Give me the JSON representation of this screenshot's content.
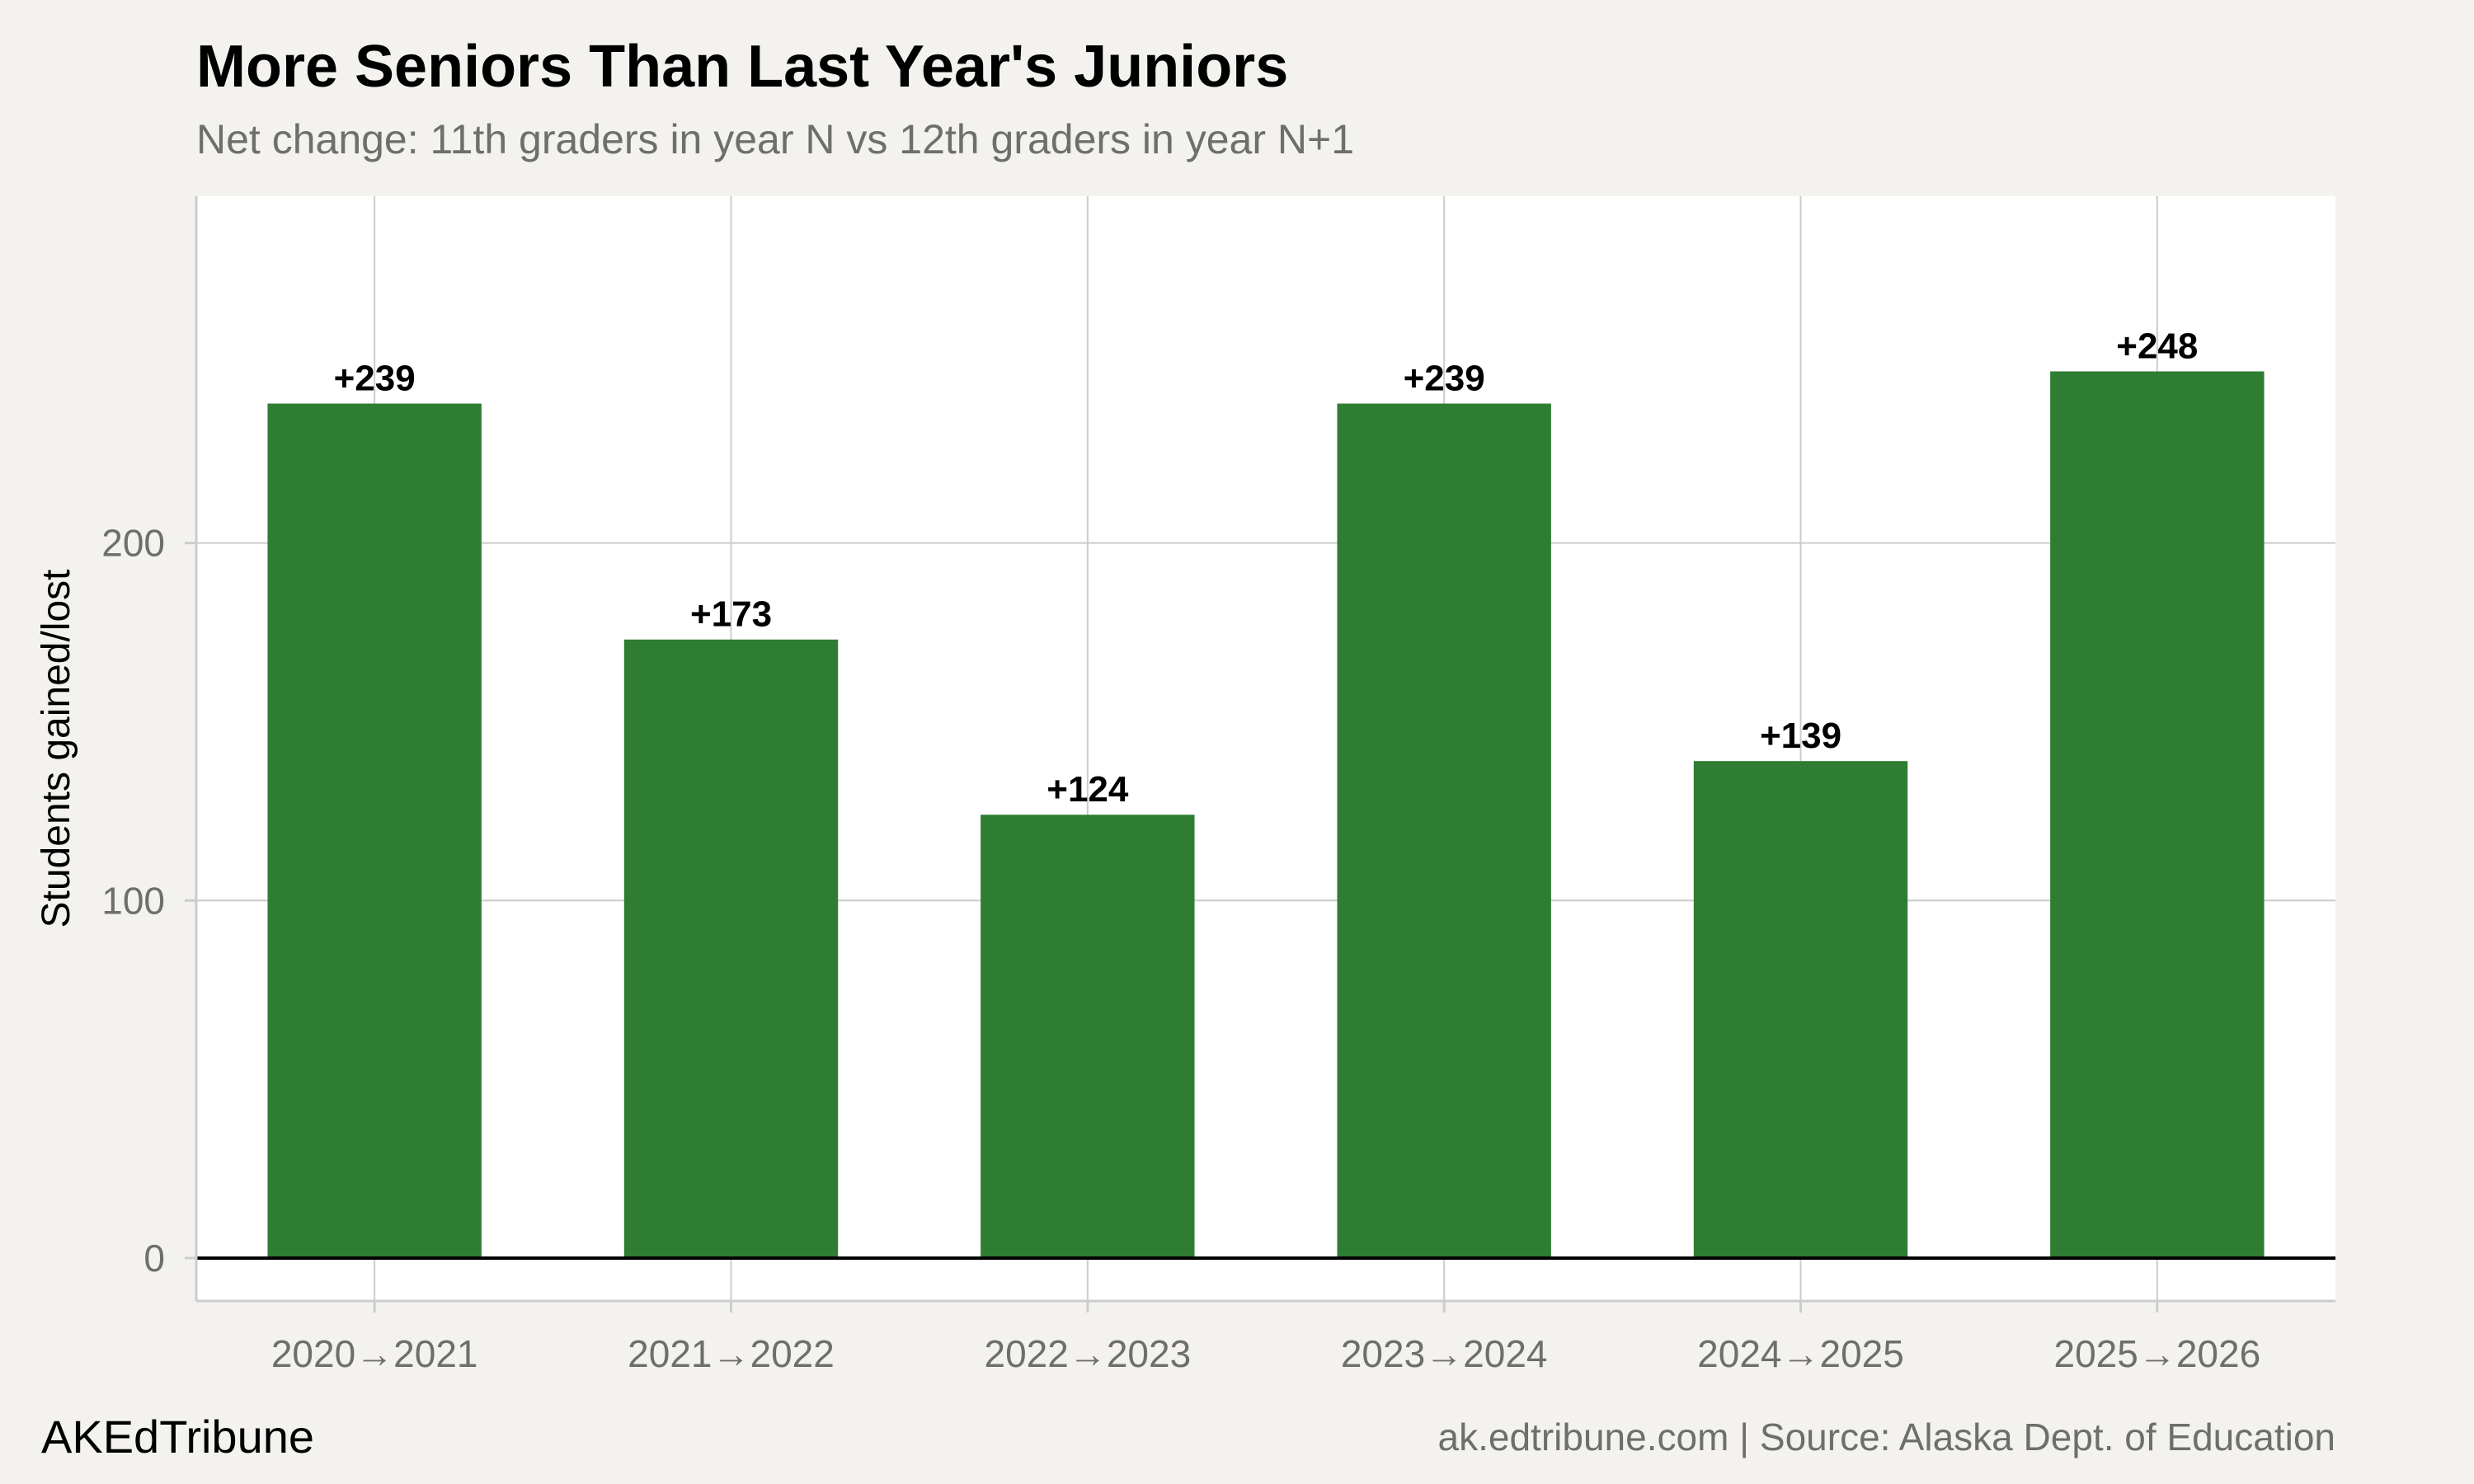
{
  "header": {
    "title": "More Seniors Than Last Year's Juniors",
    "subtitle": "Net change: 11th graders in year N vs 12th graders in year N+1"
  },
  "footer": {
    "brand": "AKEdTribune",
    "source": "ak.edtribune.com | Source: Alaska Dept. of Education"
  },
  "colors": {
    "bar": "#2e7d32",
    "page_background": "#f4f2ee",
    "plot_background": "#ffffff",
    "grid": "#cccccc",
    "zero_line": "#000000"
  },
  "chart_data": {
    "type": "bar",
    "title": "More Seniors Than Last Year's Juniors",
    "subtitle": "Net change: 11th graders in year N vs 12th graders in year N+1",
    "xlabel": "",
    "ylabel": "Students gained/lost",
    "categories": [
      "2020→2021",
      "2021→2022",
      "2022→2023",
      "2023→2024",
      "2024→2025",
      "2025→2026"
    ],
    "values": [
      239,
      173,
      124,
      239,
      139,
      248
    ],
    "value_labels": [
      "+239",
      "+173",
      "+124",
      "+239",
      "+139",
      "+248"
    ],
    "yticks": [
      0,
      100,
      200
    ],
    "ytick_labels": [
      "0",
      "100",
      "200"
    ],
    "ylim": [
      -12,
      297
    ],
    "grid": true,
    "legend": "none"
  }
}
